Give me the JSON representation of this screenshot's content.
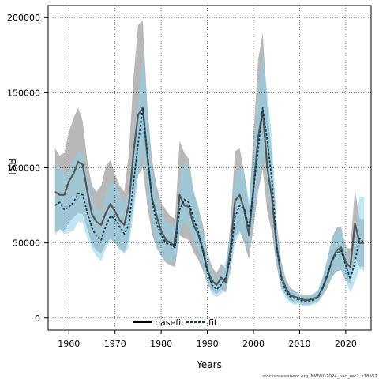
{
  "chart_data": {
    "type": "line",
    "xlabel": "Years",
    "ylabel": "TSB",
    "xlim": [
      1955.5,
      2025.5
    ],
    "ylim": [
      -8000,
      208000
    ],
    "xticks": [
      1960,
      1970,
      1980,
      1990,
      2000,
      2010,
      2020
    ],
    "yticks": [
      0,
      50000,
      100000,
      150000,
      200000
    ],
    "grid": true,
    "legend_position": "bottom-center",
    "credit": "stockassessment.org, NWWG2024_had_rec2, r18557",
    "x": [
      1957,
      1958,
      1959,
      1960,
      1961,
      1962,
      1963,
      1964,
      1965,
      1966,
      1967,
      1968,
      1969,
      1970,
      1971,
      1972,
      1973,
      1974,
      1975,
      1976,
      1977,
      1978,
      1979,
      1980,
      1981,
      1982,
      1983,
      1984,
      1985,
      1986,
      1987,
      1988,
      1989,
      1990,
      1991,
      1992,
      1993,
      1994,
      1995,
      1996,
      1997,
      1998,
      1999,
      2000,
      2001,
      2002,
      2003,
      2004,
      2005,
      2006,
      2007,
      2008,
      2009,
      2010,
      2011,
      2012,
      2013,
      2014,
      2015,
      2016,
      2017,
      2018,
      2019,
      2020,
      2021,
      2022,
      2023,
      2024
    ],
    "series": [
      {
        "name": "basefit",
        "color": "#555555",
        "band_color": "#a6a6a6",
        "values": [
          84000,
          82000,
          82000,
          91000,
          96000,
          104000,
          102000,
          84000,
          69000,
          64000,
          62000,
          70000,
          76000,
          71000,
          65000,
          62000,
          76000,
          110000,
          135000,
          140000,
          108000,
          80000,
          68000,
          58000,
          52000,
          50000,
          48000,
          82000,
          75000,
          74000,
          62000,
          56000,
          46000,
          32000,
          25000,
          22000,
          27000,
          24000,
          46000,
          78000,
          82000,
          72000,
          55000,
          86000,
          120000,
          138000,
          100000,
          80000,
          48000,
          28000,
          20000,
          15000,
          14000,
          13000,
          12000,
          12000,
          13000,
          14000,
          20000,
          28000,
          38000,
          45000,
          47000,
          37000,
          34000,
          63000,
          50000,
          50000
        ],
        "lower": [
          57000,
          59000,
          58000,
          64000,
          67000,
          70000,
          69000,
          59000,
          49000,
          45000,
          43000,
          49000,
          53000,
          50000,
          46000,
          44000,
          53000,
          76000,
          95000,
          100000,
          75000,
          56000,
          47000,
          41000,
          37000,
          35000,
          34000,
          55000,
          53000,
          52000,
          44000,
          39000,
          32000,
          23000,
          18000,
          16000,
          19000,
          17000,
          32000,
          54000,
          58000,
          50000,
          39000,
          60000,
          84000,
          99000,
          71000,
          57000,
          35000,
          20000,
          15000,
          11000,
          10000,
          10000,
          9000,
          9000,
          10000,
          11000,
          15000,
          20000,
          27000,
          31000,
          32000,
          25000,
          23000,
          40000,
          34000,
          34000
        ],
        "upper": [
          113000,
          108000,
          110000,
          124000,
          133000,
          140000,
          131000,
          104000,
          88000,
          84000,
          88000,
          101000,
          105000,
          96000,
          88000,
          84000,
          110000,
          160000,
          195000,
          198000,
          141000,
          106000,
          88000,
          77000,
          72000,
          68000,
          66000,
          118000,
          110000,
          106000,
          84000,
          74000,
          63000,
          44000,
          34000,
          30000,
          36000,
          33000,
          62000,
          111000,
          113000,
          97000,
          74000,
          122000,
          172000,
          190000,
          140000,
          108000,
          65000,
          38000,
          26000,
          20000,
          18000,
          16000,
          15000,
          15000,
          16000,
          18000,
          27000,
          39000,
          53000,
          60000,
          61000,
          47000,
          46000,
          86000,
          66000,
          66000
        ]
      },
      {
        "name": "fit",
        "color": "#0b3d5c",
        "band_color": "#8ccfea",
        "values": [
          75000,
          77000,
          72000,
          74000,
          77000,
          83000,
          82000,
          70000,
          60000,
          54000,
          52000,
          61000,
          68000,
          66000,
          61000,
          56000,
          62000,
          90000,
          116000,
          140000,
          110000,
          79000,
          63000,
          55000,
          50000,
          49000,
          47000,
          72000,
          79000,
          77000,
          66000,
          58000,
          45000,
          31000,
          22000,
          19000,
          22000,
          27000,
          40000,
          67000,
          75000,
          73000,
          60000,
          85000,
          112000,
          140000,
          118000,
          92000,
          50000,
          26000,
          18000,
          14000,
          13000,
          12000,
          11000,
          11000,
          12000,
          14000,
          20000,
          29000,
          38000,
          43000,
          45000,
          35000,
          26000,
          37000,
          53000,
          50000
        ],
        "lower": [
          55000,
          59000,
          56000,
          57000,
          58000,
          64000,
          63000,
          53000,
          46000,
          41000,
          38000,
          46000,
          52000,
          50000,
          46000,
          43000,
          47000,
          69000,
          93000,
          111000,
          85000,
          62000,
          48000,
          43000,
          39000,
          38000,
          36000,
          56000,
          63000,
          61000,
          52000,
          46000,
          35000,
          23000,
          16000,
          14000,
          16000,
          20000,
          30000,
          50000,
          56000,
          55000,
          45000,
          64000,
          86000,
          108000,
          88000,
          68000,
          37000,
          19000,
          13000,
          10000,
          9000,
          9000,
          8000,
          8000,
          9000,
          10000,
          15000,
          22000,
          28000,
          31000,
          32000,
          25000,
          17000,
          24000,
          33000,
          31000
        ],
        "upper": [
          99000,
          101000,
          96000,
          98000,
          104000,
          111000,
          110000,
          94000,
          80000,
          73000,
          71000,
          82000,
          91000,
          89000,
          83000,
          77000,
          84000,
          120000,
          145000,
          176000,
          141000,
          101000,
          82000,
          71000,
          65000,
          63000,
          61000,
          92000,
          104000,
          100000,
          85000,
          75000,
          59000,
          41000,
          30000,
          26000,
          30000,
          38000,
          56000,
          92000,
          101000,
          97000,
          79000,
          112000,
          150000,
          178000,
          151000,
          120000,
          66000,
          35000,
          24000,
          19000,
          18000,
          16000,
          15000,
          15000,
          16000,
          19000,
          27000,
          39000,
          52000,
          58000,
          60000,
          48000,
          37000,
          53000,
          81000,
          81000
        ]
      }
    ]
  }
}
